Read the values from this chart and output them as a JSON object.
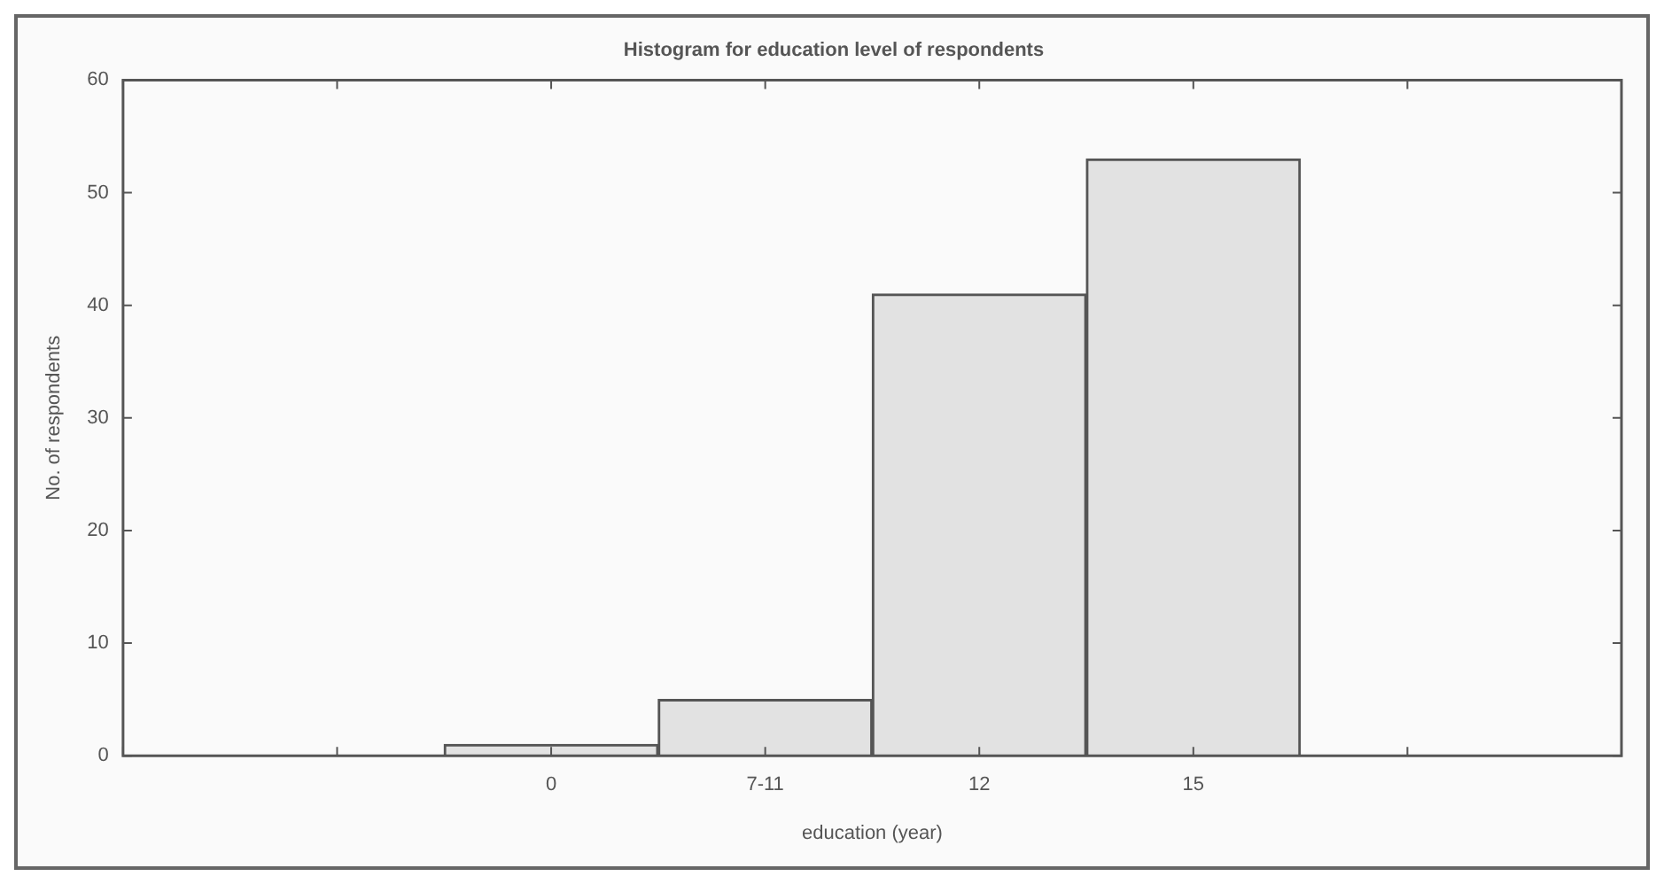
{
  "chart_data": {
    "type": "bar",
    "title": "Histogram for education level of respondents",
    "xlabel": "education (year)",
    "ylabel": "No. of respondents",
    "categories": [
      null,
      null,
      "0",
      "7-11",
      "12",
      "15",
      null,
      null
    ],
    "values": [
      null,
      null,
      1,
      5,
      41,
      53,
      null,
      null
    ],
    "color": "#e2e2e2",
    "ylim": [
      0,
      60
    ],
    "yticks": [
      0,
      10,
      20,
      30,
      40,
      50,
      60
    ],
    "grid": false,
    "legend": false
  }
}
